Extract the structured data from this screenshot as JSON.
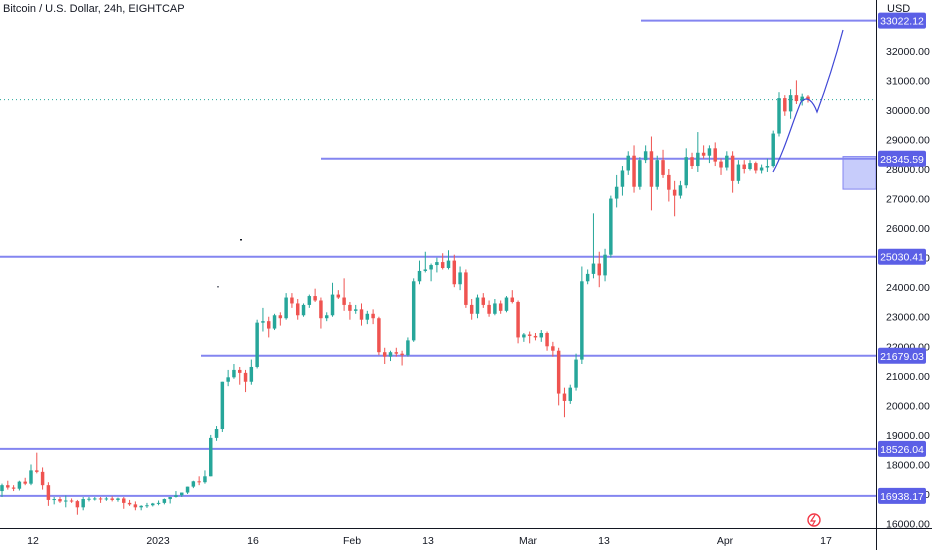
{
  "header": {
    "title": "Bitcoin / U.S. Dollar, 24h, EIGHTCAP",
    "currency": "USD"
  },
  "colors": {
    "bullish": "#26a69a",
    "bearish": "#ef5350",
    "level_line": "#8385f0",
    "level_label_bg": "#5b5fe6",
    "drawing": "#3f47d6",
    "price_dotted": "#26a69a",
    "axis_border": "#131722",
    "zone_fill": "#c7ccfb"
  },
  "chart_data": {
    "type": "candlestick",
    "title": "Bitcoin / U.S. Dollar, 24h, EIGHTCAP",
    "ylabel": "USD",
    "ylim": [
      15850,
      33720
    ],
    "x_tick_labels": [
      "12",
      "2023",
      "16",
      "Feb",
      "13",
      "Mar",
      "13",
      "Apr",
      "17"
    ],
    "y_tick_labels": [
      "16000.00",
      "17000.00",
      "18000.00",
      "19000.00",
      "20000.00",
      "21000.00",
      "22000.00",
      "23000.00",
      "24000.00",
      "25000.00",
      "26000.00",
      "27000.00",
      "28000.00",
      "29000.00",
      "30000.00",
      "31000.00",
      "32000.00"
    ],
    "horizontal_levels": [
      "33022.12",
      "28345.59",
      "25030.41",
      "21679.03",
      "18526.04",
      "16938.17"
    ],
    "last_price": 30350,
    "candles_ohlc": [
      [
        17100,
        17350,
        16900,
        17300
      ],
      [
        17300,
        17450,
        17150,
        17220
      ],
      [
        17220,
        17300,
        17100,
        17180
      ],
      [
        17180,
        17450,
        17120,
        17420
      ],
      [
        17420,
        17550,
        17300,
        17350
      ],
      [
        17350,
        18000,
        17300,
        17800
      ],
      [
        17800,
        18400,
        17700,
        17750
      ],
      [
        17750,
        17900,
        17150,
        17300
      ],
      [
        17300,
        17400,
        16600,
        16800
      ],
      [
        16800,
        16900,
        16650,
        16830
      ],
      [
        16830,
        16900,
        16700,
        16750
      ],
      [
        16750,
        16950,
        16550,
        16780
      ],
      [
        16780,
        16850,
        16700,
        16760
      ],
      [
        16760,
        16800,
        16300,
        16550
      ],
      [
        16550,
        16900,
        16450,
        16830
      ],
      [
        16830,
        16900,
        16750,
        16840
      ],
      [
        16840,
        16900,
        16780,
        16850
      ],
      [
        16850,
        16900,
        16700,
        16820
      ],
      [
        16820,
        16900,
        16770,
        16850
      ],
      [
        16850,
        16920,
        16750,
        16800
      ],
      [
        16800,
        16880,
        16740,
        16850
      ],
      [
        16850,
        16900,
        16500,
        16700
      ],
      [
        16700,
        16800,
        16600,
        16650
      ],
      [
        16650,
        16750,
        16450,
        16550
      ],
      [
        16550,
        16620,
        16450,
        16600
      ],
      [
        16600,
        16700,
        16530,
        16620
      ],
      [
        16620,
        16700,
        16580,
        16680
      ],
      [
        16680,
        16780,
        16620,
        16700
      ],
      [
        16700,
        16850,
        16650,
        16830
      ],
      [
        16830,
        16900,
        16680,
        16900
      ],
      [
        16900,
        17100,
        16880,
        16960
      ],
      [
        16960,
        17050,
        16900,
        17050
      ],
      [
        17050,
        17250,
        17000,
        17250
      ],
      [
        17250,
        17450,
        17200,
        17430
      ],
      [
        17430,
        17600,
        17300,
        17400
      ],
      [
        17400,
        17800,
        17350,
        17600
      ],
      [
        17600,
        19000,
        17600,
        18900
      ],
      [
        18900,
        19300,
        18800,
        19200
      ],
      [
        19200,
        20800,
        19100,
        20800
      ],
      [
        20800,
        21200,
        20650,
        20950
      ],
      [
        20950,
        21400,
        20900,
        21200
      ],
      [
        21200,
        21300,
        20700,
        21100
      ],
      [
        21100,
        21200,
        20450,
        20800
      ],
      [
        20800,
        21550,
        20700,
        21300
      ],
      [
        21300,
        22900,
        21250,
        22800
      ],
      [
        22800,
        23300,
        22500,
        22850
      ],
      [
        22850,
        23000,
        22300,
        22600
      ],
      [
        22600,
        23100,
        22550,
        23050
      ],
      [
        23050,
        23150,
        22700,
        22950
      ],
      [
        22950,
        23800,
        22900,
        23650
      ],
      [
        23650,
        23800,
        23300,
        23450
      ],
      [
        23450,
        23600,
        22900,
        23050
      ],
      [
        23050,
        23450,
        23000,
        23400
      ],
      [
        23400,
        23750,
        23300,
        23700
      ],
      [
        23700,
        23950,
        23500,
        23550
      ],
      [
        23550,
        23650,
        22600,
        22950
      ],
      [
        22950,
        23150,
        22850,
        23050
      ],
      [
        23050,
        24150,
        23000,
        23750
      ],
      [
        23750,
        23900,
        23600,
        23650
      ],
      [
        23650,
        24300,
        23200,
        23400
      ],
      [
        23400,
        23500,
        22900,
        23200
      ],
      [
        23200,
        23400,
        23100,
        23250
      ],
      [
        23250,
        23450,
        22700,
        22900
      ],
      [
        22900,
        23200,
        22750,
        23100
      ],
      [
        23100,
        23250,
        22750,
        22950
      ],
      [
        22950,
        23000,
        21700,
        21800
      ],
      [
        21800,
        21950,
        21400,
        21650
      ],
      [
        21650,
        21850,
        21500,
        21800
      ],
      [
        21800,
        21950,
        21650,
        21750
      ],
      [
        21750,
        21850,
        21350,
        21700
      ],
      [
        21700,
        22300,
        21650,
        22200
      ],
      [
        22200,
        24300,
        22150,
        24200
      ],
      [
        24200,
        24900,
        24100,
        24550
      ],
      [
        24550,
        25200,
        24500,
        24600
      ],
      [
        24600,
        24800,
        24200,
        24750
      ],
      [
        24750,
        25000,
        24500,
        24850
      ],
      [
        24850,
        25150,
        24600,
        24650
      ],
      [
        24650,
        25250,
        24600,
        24900
      ],
      [
        24900,
        25100,
        24000,
        24100
      ],
      [
        24100,
        24700,
        23900,
        24500
      ],
      [
        24500,
        24600,
        23300,
        23400
      ],
      [
        23400,
        23600,
        22900,
        23100
      ],
      [
        23100,
        23750,
        22950,
        23650
      ],
      [
        23650,
        23800,
        23300,
        23400
      ],
      [
        23400,
        23550,
        23000,
        23100
      ],
      [
        23100,
        23600,
        23050,
        23450
      ],
      [
        23450,
        23550,
        23100,
        23200
      ],
      [
        23200,
        23700,
        23150,
        23650
      ],
      [
        23650,
        23900,
        23450,
        23500
      ],
      [
        23500,
        23550,
        22100,
        22300
      ],
      [
        22300,
        22450,
        22150,
        22400
      ],
      [
        22400,
        22500,
        22100,
        22350
      ],
      [
        22350,
        22450,
        22200,
        22300
      ],
      [
        22300,
        22550,
        22150,
        22450
      ],
      [
        22450,
        22500,
        21850,
        22000
      ],
      [
        22000,
        22150,
        21650,
        21850
      ],
      [
        21850,
        21950,
        20000,
        20400
      ],
      [
        20400,
        20600,
        19600,
        20150
      ],
      [
        20150,
        20700,
        20050,
        20600
      ],
      [
        20600,
        21750,
        20500,
        21550
      ],
      [
        21550,
        24700,
        21400,
        24200
      ],
      [
        24200,
        24600,
        24100,
        24450
      ],
      [
        24450,
        26500,
        24300,
        24800
      ],
      [
        24800,
        25200,
        24000,
        24400
      ],
      [
        24400,
        25300,
        24200,
        25100
      ],
      [
        25100,
        27100,
        25000,
        27000
      ],
      [
        27000,
        27800,
        26700,
        27400
      ],
      [
        27400,
        28100,
        27100,
        27950
      ],
      [
        27950,
        28600,
        27800,
        28450
      ],
      [
        28450,
        28800,
        27200,
        27400
      ],
      [
        27400,
        28400,
        27300,
        28300
      ],
      [
        28300,
        28800,
        28200,
        28600
      ],
      [
        28600,
        29100,
        26600,
        27400
      ],
      [
        27400,
        28450,
        27300,
        28300
      ],
      [
        28300,
        28650,
        27700,
        27800
      ],
      [
        27800,
        28000,
        26900,
        27300
      ],
      [
        27300,
        27600,
        26400,
        27100
      ],
      [
        27100,
        27600,
        27000,
        27450
      ],
      [
        27450,
        28700,
        27350,
        28400
      ],
      [
        28400,
        28550,
        28000,
        28100
      ],
      [
        28100,
        29250,
        27900,
        28550
      ],
      [
        28550,
        28800,
        28350,
        28450
      ],
      [
        28450,
        28800,
        28200,
        28700
      ],
      [
        28700,
        28900,
        28100,
        28250
      ],
      [
        28250,
        28350,
        27800,
        28050
      ],
      [
        28050,
        28600,
        27950,
        28450
      ],
      [
        28450,
        28600,
        27200,
        27600
      ],
      [
        27600,
        28300,
        27500,
        28150
      ],
      [
        28150,
        28300,
        27850,
        28000
      ],
      [
        28000,
        28300,
        27950,
        28200
      ],
      [
        28200,
        28250,
        27850,
        27950
      ],
      [
        27950,
        28150,
        27850,
        28050
      ],
      [
        28050,
        28350,
        27900,
        28100
      ],
      [
        28100,
        29300,
        28050,
        29200
      ],
      [
        29200,
        30600,
        29100,
        30400
      ],
      [
        30400,
        30500,
        29800,
        29950
      ],
      [
        29950,
        30700,
        29700,
        30500
      ],
      [
        30500,
        31000,
        30200,
        30300
      ],
      [
        30300,
        30550,
        30150,
        30450
      ],
      [
        30450,
        30500,
        30250,
        30350
      ]
    ]
  }
}
